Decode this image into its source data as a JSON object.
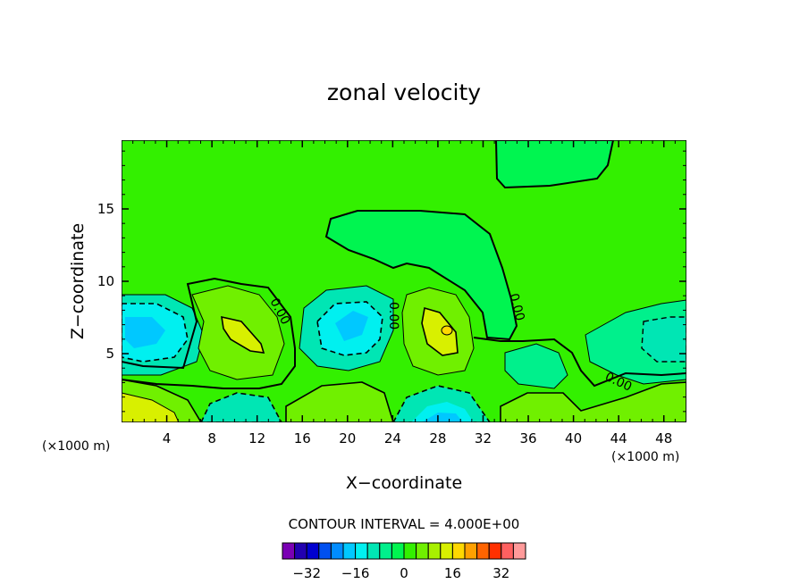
{
  "chart_data": {
    "type": "contour",
    "title": "zonal velocity",
    "xlabel": "X−coordinate",
    "ylabel": "Z−coordinate",
    "x_unit": "(×1000 m)",
    "y_unit": "(×1000 m)",
    "xlim": [
      0,
      50
    ],
    "ylim": [
      0.25,
      19.75
    ],
    "x_ticks": [
      4,
      8,
      12,
      16,
      20,
      24,
      28,
      32,
      36,
      40,
      44,
      48
    ],
    "x_tick_labels": [
      "4",
      "8",
      "12",
      "16",
      "20",
      "24",
      "28",
      "32",
      "36",
      "40",
      "44",
      "48"
    ],
    "y_ticks": [
      5,
      10,
      15
    ],
    "y_tick_labels": [
      "5",
      "10",
      "15"
    ],
    "contour_interval": 4.0,
    "contour_interval_label": "CONTOUR INTERVAL = 4.000E+00",
    "zero_contour_labels": [
      "0.00",
      "0.00",
      "0.00",
      "0.00"
    ],
    "colorbar": {
      "levels": [
        -36,
        -32,
        -28,
        -24,
        -20,
        -16,
        -12,
        -8,
        -4,
        0,
        4,
        8,
        12,
        16,
        20,
        24,
        28,
        32,
        36
      ],
      "colors": [
        "#7a00b4",
        "#2200b0",
        "#0000d0",
        "#0050f0",
        "#008cff",
        "#00c8ff",
        "#00f0f0",
        "#00e6b4",
        "#00f08c",
        "#00f550",
        "#33f000",
        "#70f000",
        "#a8f000",
        "#d8f000",
        "#ffd800",
        "#ffa000",
        "#ff6400",
        "#ff3000",
        "#ff6060",
        "#ff9a9a"
      ],
      "tick_values": [
        -32,
        -16,
        0,
        16,
        32
      ],
      "tick_labels": [
        "−32",
        "−16",
        "0",
        "16",
        "32"
      ]
    },
    "features": [
      {
        "kind": "min",
        "x": 2.5,
        "z": 6.5,
        "value": -14
      },
      {
        "kind": "max",
        "x": 10.5,
        "z": 6.5,
        "value": 12
      },
      {
        "kind": "min",
        "x": 20.5,
        "z": 7.0,
        "value": -16
      },
      {
        "kind": "max",
        "x": 28.5,
        "z": 6.5,
        "value": 18
      },
      {
        "kind": "min",
        "x": 28.0,
        "z": 0.5,
        "value": -18
      },
      {
        "kind": "min",
        "x": 10.0,
        "z": 0.5,
        "value": -12
      },
      {
        "kind": "max",
        "x": 1.0,
        "z": 0.7,
        "value": 16
      },
      {
        "kind": "min",
        "x": 47.0,
        "z": 6.0,
        "value": -8
      }
    ]
  }
}
